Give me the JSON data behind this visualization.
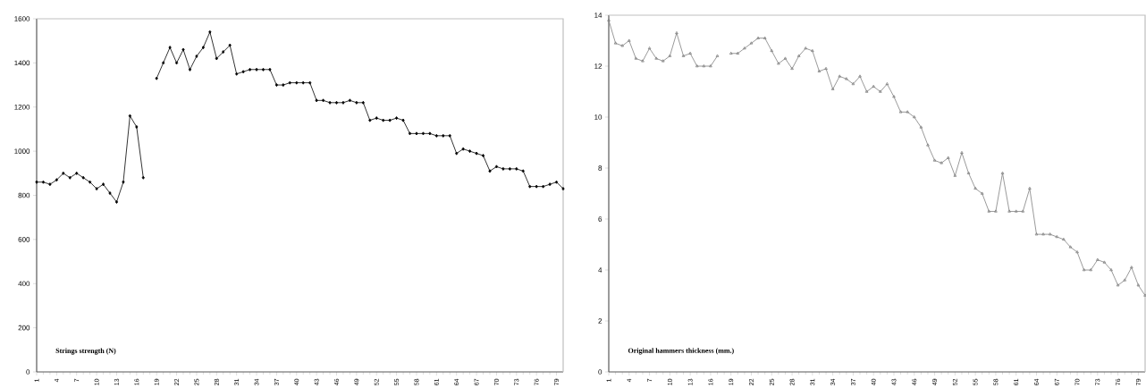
{
  "chart_data": [
    {
      "type": "line",
      "title": "Strings strength (N)",
      "categories": [
        "1",
        null,
        null,
        "4",
        null,
        null,
        "7",
        null,
        null,
        "10",
        null,
        null,
        "13",
        null,
        null,
        "16",
        null,
        null,
        "19",
        null,
        null,
        "22",
        null,
        null,
        "25",
        null,
        null,
        "28",
        null,
        null,
        "31",
        null,
        null,
        "34",
        null,
        null,
        "37",
        null,
        null,
        "40",
        null,
        null,
        "43",
        null,
        null,
        "46",
        null,
        null,
        "49",
        null,
        null,
        "52",
        null,
        null,
        "55",
        null,
        null,
        "58",
        null,
        null,
        "61",
        null,
        null,
        "64",
        null,
        null,
        "67",
        null,
        null,
        "70",
        null,
        null,
        "73",
        null,
        null,
        "76",
        null,
        null,
        "79",
        null
      ],
      "series": [
        {
          "color": "#000000",
          "values": [
            860,
            860,
            850,
            870,
            900,
            880,
            900,
            880,
            860,
            830,
            850,
            810,
            770,
            860,
            1160,
            1110,
            880,
            null,
            1330,
            1400,
            1470,
            1400,
            1460,
            1370,
            1430,
            1470,
            1540,
            1420,
            1450,
            1480,
            1350,
            1360,
            1370,
            1370,
            1370,
            1370,
            1300,
            1300,
            1310,
            1310,
            1310,
            1310,
            1230,
            1230,
            1220,
            1220,
            1220,
            1230,
            1220,
            1220,
            1140,
            1150,
            1140,
            1140,
            1150,
            1140,
            1080,
            1080,
            1080,
            1080,
            1070,
            1070,
            1070,
            990,
            1010,
            1000,
            990,
            980,
            910,
            930,
            920,
            920,
            920,
            910,
            840,
            840,
            840,
            850,
            860,
            830
          ]
        }
      ],
      "ylim": [
        0,
        1600
      ],
      "yticks": [
        0,
        200,
        400,
        600,
        800,
        1000,
        1200,
        1400,
        1600
      ],
      "marker": "diamond"
    },
    {
      "type": "line",
      "title": "Original hammers thickness (mm.)",
      "categories": [
        "1",
        null,
        null,
        "4",
        null,
        null,
        "7",
        null,
        null,
        "10",
        null,
        null,
        "13",
        null,
        null,
        "16",
        null,
        null,
        "19",
        null,
        null,
        "22",
        null,
        null,
        "25",
        null,
        null,
        "28",
        null,
        null,
        "31",
        null,
        null,
        "34",
        null,
        null,
        "37",
        null,
        null,
        "40",
        null,
        null,
        "43",
        null,
        null,
        "46",
        null,
        null,
        "49",
        null,
        null,
        "52",
        null,
        null,
        "55",
        null,
        null,
        "58",
        null,
        null,
        "61",
        null,
        null,
        "64",
        null,
        null,
        "67",
        null,
        null,
        "70",
        null,
        null,
        "73",
        null,
        null,
        "76",
        null,
        null,
        "79",
        null
      ],
      "series": [
        {
          "color": "#808080",
          "values": [
            13.8,
            12.9,
            12.8,
            13.0,
            12.3,
            12.2,
            12.7,
            12.3,
            12.2,
            12.4,
            13.3,
            12.4,
            12.5,
            12.0,
            12.0,
            12.0,
            12.4,
            null,
            12.5,
            12.5,
            12.7,
            12.9,
            13.1,
            13.1,
            12.6,
            12.1,
            12.3,
            11.9,
            12.4,
            12.7,
            12.6,
            11.8,
            11.9,
            11.1,
            11.6,
            11.5,
            11.3,
            11.6,
            11.0,
            11.2,
            11.0,
            11.3,
            10.8,
            10.2,
            10.2,
            10.0,
            9.6,
            8.9,
            8.3,
            8.2,
            8.4,
            7.7,
            8.6,
            7.8,
            7.2,
            7.0,
            6.3,
            6.3,
            7.8,
            6.3,
            6.3,
            6.3,
            7.2,
            5.4,
            5.4,
            5.4,
            5.3,
            5.2,
            4.9,
            4.7,
            4.0,
            4.0,
            4.4,
            4.3,
            4.0,
            3.4,
            3.6,
            4.1,
            3.4,
            3.0
          ]
        }
      ],
      "ylim": [
        0,
        14
      ],
      "yticks": [
        0,
        2,
        4,
        6,
        8,
        10,
        12,
        14
      ],
      "marker": "triangle"
    }
  ]
}
